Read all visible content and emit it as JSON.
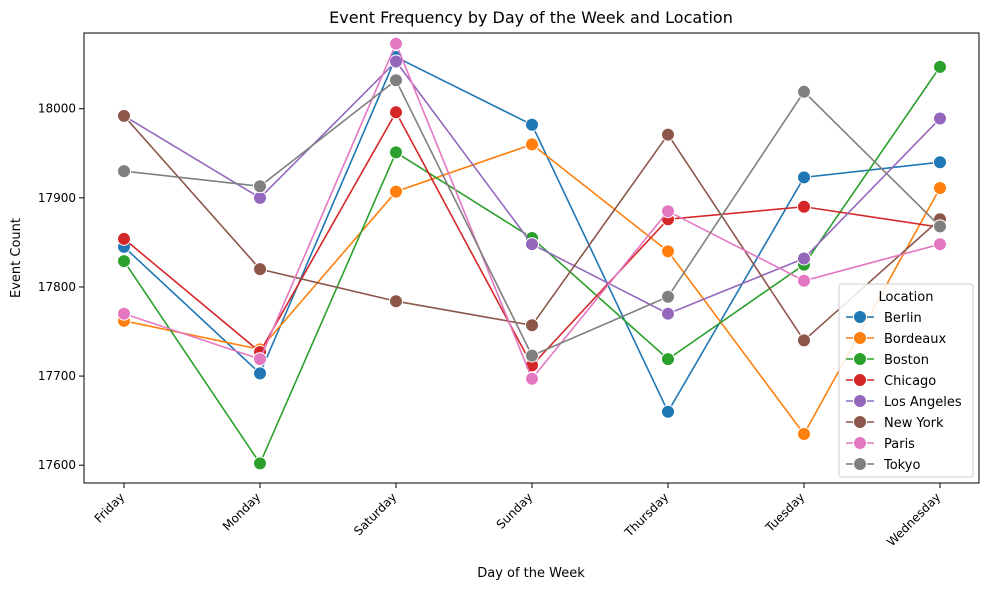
{
  "chart_data": {
    "type": "line",
    "title": "Event Frequency by Day of the Week and Location",
    "xlabel": "Day of the Week",
    "ylabel": "Event Count",
    "categories": [
      "Friday",
      "Monday",
      "Saturday",
      "Sunday",
      "Thursday",
      "Tuesday",
      "Wednesday"
    ],
    "ylim": [
      17580,
      18085
    ],
    "yticks": [
      17600,
      17700,
      17800,
      17900,
      18000
    ],
    "legend": {
      "title": "Location",
      "placement": "lower-right"
    },
    "grid": false,
    "series": [
      {
        "name": "Berlin",
        "color": "#1f77b4",
        "values": [
          17845,
          17703,
          18058,
          17982,
          17660,
          17923,
          17940
        ]
      },
      {
        "name": "Bordeaux",
        "color": "#ff7f0e",
        "values": [
          17762,
          17730,
          17907,
          17960,
          17840,
          17635,
          17911
        ]
      },
      {
        "name": "Boston",
        "color": "#2ca02c",
        "values": [
          17829,
          17602,
          17951,
          17855,
          17719,
          17825,
          18047
        ]
      },
      {
        "name": "Chicago",
        "color": "#d62728",
        "values": [
          17854,
          17727,
          17996,
          17712,
          17876,
          17890,
          17867
        ]
      },
      {
        "name": "Los Angeles",
        "color": "#9467bd",
        "values": [
          17992,
          17900,
          18053,
          17848,
          17770,
          17832,
          17989
        ]
      },
      {
        "name": "New York",
        "color": "#8c564b",
        "values": [
          17992,
          17820,
          17784,
          17757,
          17971,
          17740,
          17876
        ]
      },
      {
        "name": "Paris",
        "color": "#e377c2",
        "values": [
          17770,
          17719,
          18073,
          17697,
          17885,
          17807,
          17848
        ]
      },
      {
        "name": "Tokyo",
        "color": "#7f7f7f",
        "values": [
          17930,
          17913,
          18032,
          17723,
          17789,
          18019,
          17868
        ]
      }
    ]
  }
}
